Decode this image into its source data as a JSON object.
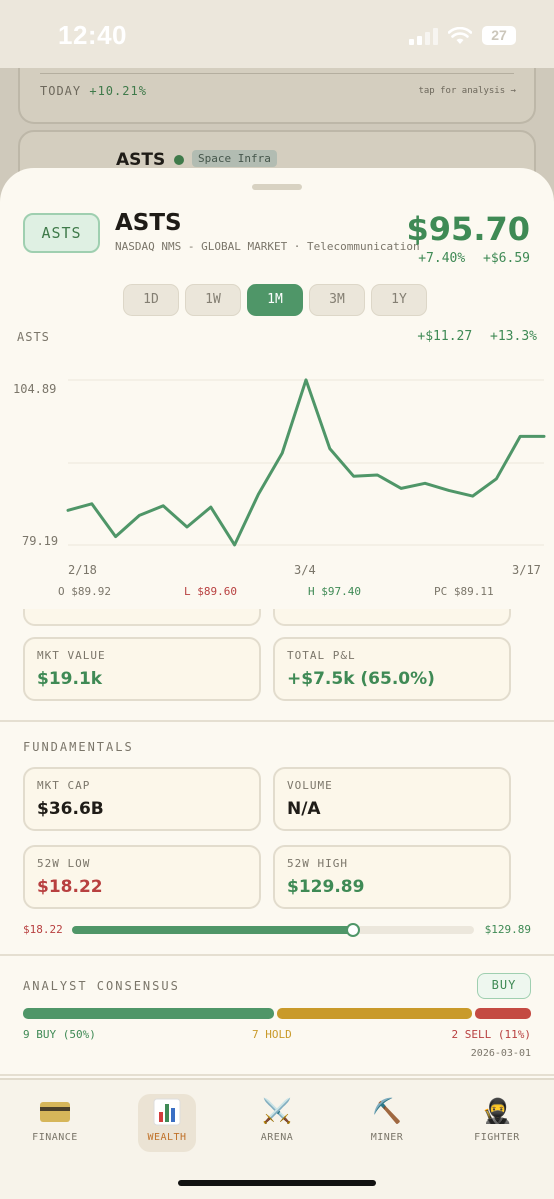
{
  "status_bar": {
    "time": "12:40",
    "battery": "27"
  },
  "background": {
    "today_label": "TODAY",
    "today_change": "+10.21%",
    "tap_hint": "tap for analysis →",
    "ticker": "ASTS",
    "tag": "Space Infra"
  },
  "header": {
    "badge": "ASTS",
    "ticker": "ASTS",
    "subtitle": "NASDAQ NMS - GLOBAL MARKET · Telecommunication",
    "price": "$95.70",
    "change_pct": "+7.40%",
    "change_abs": "+$6.59"
  },
  "ranges": [
    {
      "label": "1D",
      "active": false
    },
    {
      "label": "1W",
      "active": false
    },
    {
      "label": "1M",
      "active": true
    },
    {
      "label": "3M",
      "active": false
    },
    {
      "label": "1Y",
      "active": false
    }
  ],
  "chart_data": {
    "type": "line",
    "title": "ASTS",
    "gain_abs": "+$11.27",
    "gain_pct": "+13.3%",
    "ylim": [
      79.19,
      104.89
    ],
    "y_ticks": [
      "104.89",
      "79.19"
    ],
    "x_ticks": [
      "2/18",
      "3/4",
      "3/17"
    ],
    "grid": true,
    "line_color": "#4f9668",
    "series": [
      {
        "values": [
          84.6,
          85.6,
          80.5,
          83.8,
          85.3,
          82.0,
          85.1,
          79.2,
          87.1,
          93.5,
          104.9,
          94.2,
          89.9,
          90.1,
          88.0,
          88.8,
          87.7,
          86.8,
          89.5,
          96.1,
          96.1
        ]
      }
    ],
    "ohlc": {
      "open": "O $89.92",
      "low": "L $89.60",
      "high": "H $97.40",
      "prev_close": "PC $89.11"
    }
  },
  "position": {
    "mkt_value_label": "MKT VALUE",
    "mkt_value": "$19.1k",
    "total_pl_label": "TOTAL P&L",
    "total_pl": "+$7.5k (65.0%)"
  },
  "fundamentals": {
    "title": "FUNDAMENTALS",
    "mkt_cap_label": "MKT CAP",
    "mkt_cap": "$36.6B",
    "volume_label": "VOLUME",
    "volume": "N/A",
    "low52_label": "52W LOW",
    "low52": "$18.22",
    "high52_label": "52W HIGH",
    "high52": "$129.89",
    "range_low": "$18.22",
    "range_high": "$129.89",
    "range_position": 0.7
  },
  "analyst": {
    "title": "ANALYST CONSENSUS",
    "rating": "BUY",
    "buy": "9 BUY (50%)",
    "hold": "7 HOLD",
    "sell": "2 SELL (11%)",
    "buy_count": 9,
    "hold_count": 7,
    "sell_count": 2,
    "colors": {
      "buy": "#4f9668",
      "hold": "#c99a2a",
      "sell": "#c44a42"
    },
    "date": "2026-03-01"
  },
  "tabs": [
    {
      "label": "FINANCE",
      "icon": "credit-card-icon"
    },
    {
      "label": "WEALTH",
      "icon": "bar-chart-icon",
      "active": true
    },
    {
      "label": "ARENA",
      "icon": "crossed-swords-icon",
      "glyph": "⚔️"
    },
    {
      "label": "MINER",
      "icon": "pickaxe-icon",
      "glyph": "⛏️"
    },
    {
      "label": "FIGHTER",
      "icon": "ninja-icon",
      "glyph": "🥷"
    }
  ]
}
